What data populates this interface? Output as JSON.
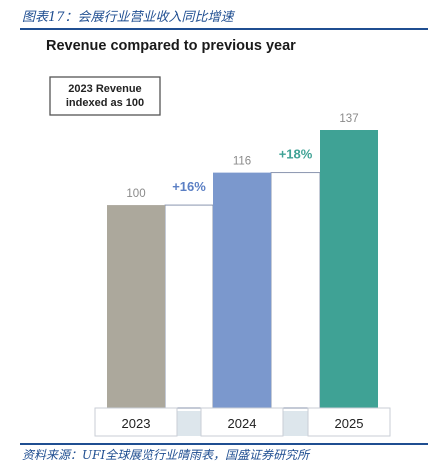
{
  "page": {
    "figure_caption": "图表17：会展行业营业收入同比增速",
    "source_note": "资料来源：UFI全球展览行业晴雨表，国盛证券研究所"
  },
  "colors": {
    "caption_blue": "#1f4e91",
    "bar_2023": "#aca89c",
    "bar_2024": "#7b98cd",
    "bar_2025": "#3fa295",
    "growth_2024": "#5b7fc4",
    "growth_2025": "#3fa295"
  },
  "chart_data": {
    "type": "bar",
    "title": "Revenue compared to previous year",
    "xlabel": "",
    "ylabel": "",
    "ylim": [
      0,
      137
    ],
    "grid": false,
    "legend": "none",
    "note": "2023 Revenue\nindexed as 100",
    "categories": [
      "2023",
      "2024",
      "2025"
    ],
    "values": [
      100,
      116,
      137
    ],
    "value_labels": [
      "100",
      "116",
      "137"
    ],
    "growth_labels": [
      "",
      "+16%",
      "+18%"
    ]
  }
}
